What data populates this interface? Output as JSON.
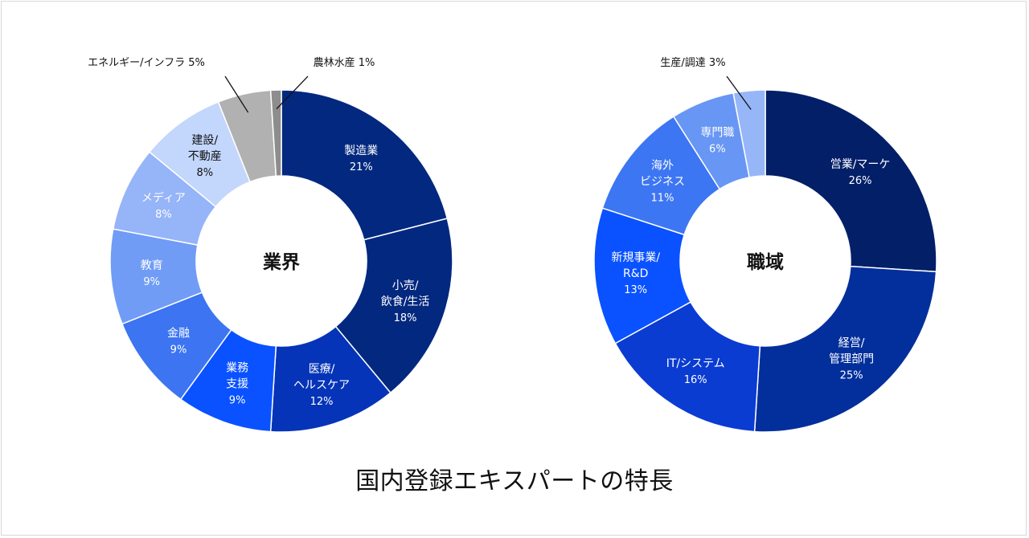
{
  "caption": "国内登録エキスパートの特長",
  "chart_data": [
    {
      "type": "pie",
      "center_label": "業界",
      "slices": [
        {
          "label": [
            "製造業"
          ],
          "value": 21,
          "value_label": "21%",
          "color": "#03287f",
          "text_color": "#ffffff"
        },
        {
          "label": [
            "小売/",
            "飲食/生活"
          ],
          "value": 18,
          "value_label": "18%",
          "color": "#03287f",
          "text_color": "#ffffff"
        },
        {
          "label": [
            "医療/",
            "ヘルスケア"
          ],
          "value": 12,
          "value_label": "12%",
          "color": "#0534b8",
          "text_color": "#ffffff"
        },
        {
          "label": [
            "業務",
            "支援"
          ],
          "value": 9,
          "value_label": "9%",
          "color": "#0a52ff",
          "text_color": "#ffffff"
        },
        {
          "label": [
            "金融"
          ],
          "value": 9,
          "value_label": "9%",
          "color": "#3c74f2",
          "text_color": "#ffffff"
        },
        {
          "label": [
            "教育"
          ],
          "value": 9,
          "value_label": "9%",
          "color": "#709cf6",
          "text_color": "#ffffff"
        },
        {
          "label": [
            "メディア"
          ],
          "value": 8,
          "value_label": "8%",
          "color": "#96b4f8",
          "text_color": "#ffffff"
        },
        {
          "label": [
            "建設/",
            "不動産"
          ],
          "value": 8,
          "value_label": "8%",
          "color": "#c3d6fc",
          "text_color": "#111111"
        },
        {
          "label": [
            "エネルギー/インフラ 5%"
          ],
          "value": 5,
          "value_label": "",
          "color": "#b1b1b1",
          "text_color": "#111111",
          "callout": true
        },
        {
          "label": [
            "農林水産 1%"
          ],
          "value": 1,
          "value_label": "",
          "color": "#8d8d8d",
          "text_color": "#111111",
          "callout": true
        }
      ]
    },
    {
      "type": "pie",
      "center_label": "職域",
      "slices": [
        {
          "label": [
            "営業/マーケ"
          ],
          "value": 26,
          "value_label": "26%",
          "color": "#031f68",
          "text_color": "#ffffff"
        },
        {
          "label": [
            "経営/",
            "管理部門"
          ],
          "value": 25,
          "value_label": "25%",
          "color": "#032f9c",
          "text_color": "#ffffff"
        },
        {
          "label": [
            "IT/システム"
          ],
          "value": 16,
          "value_label": "16%",
          "color": "#0a3cd2",
          "text_color": "#ffffff"
        },
        {
          "label": [
            "新規事業/",
            "R&D"
          ],
          "value": 13,
          "value_label": "13%",
          "color": "#0a52ff",
          "text_color": "#ffffff"
        },
        {
          "label": [
            "海外",
            "ビジネス"
          ],
          "value": 11,
          "value_label": "11%",
          "color": "#3d76f2",
          "text_color": "#ffffff"
        },
        {
          "label": [
            "専門職"
          ],
          "value": 6,
          "value_label": "6%",
          "color": "#6896f4",
          "text_color": "#ffffff"
        },
        {
          "label": [
            "生産/調達 3%"
          ],
          "value": 3,
          "value_label": "",
          "color": "#96b6f8",
          "text_color": "#111111",
          "callout": true
        }
      ]
    }
  ]
}
